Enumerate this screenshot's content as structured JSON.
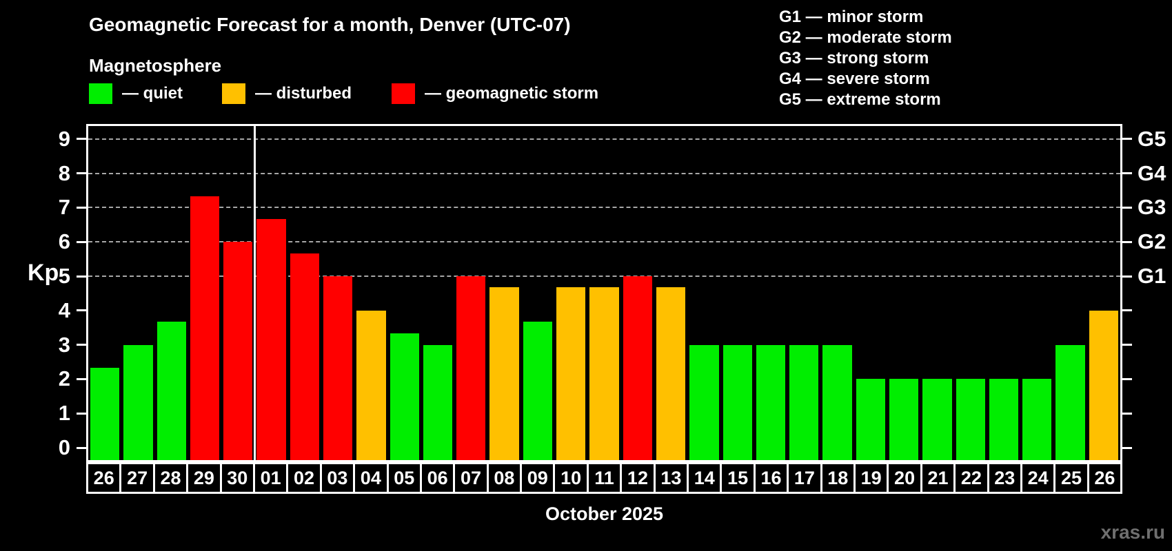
{
  "title": "Geomagnetic Forecast for a month, Denver (UTC-07)",
  "subtitle": "Magnetosphere",
  "legend": {
    "items": [
      {
        "key": "quiet",
        "label": "— quiet"
      },
      {
        "key": "disturbed",
        "label": "— disturbed"
      },
      {
        "key": "storm",
        "label": "— geomagnetic storm"
      }
    ]
  },
  "g_legend": {
    "lines": [
      "G1 — minor storm",
      "G2 — moderate storm",
      "G3 — strong storm",
      "G4 — severe storm",
      "G5 — extreme storm"
    ]
  },
  "axis": {
    "y_label": "Kp",
    "x_label": "October 2025"
  },
  "watermark": "xras.ru",
  "colors": {
    "quiet": "#00ee00",
    "disturbed": "#ffc000",
    "storm": "#ff0000",
    "axis": "#ffffff",
    "grid": "#a8a8a8",
    "watermark": "#6f6f6f"
  },
  "chart_data": {
    "type": "bar",
    "title": "Geomagnetic Forecast for a month, Denver (UTC-07)",
    "subtitle": "Magnetosphere",
    "ylabel": "Kp",
    "xlabel": "October 2025",
    "ylim": [
      0,
      9
    ],
    "yticks": [
      0,
      1,
      2,
      3,
      4,
      5,
      6,
      7,
      8,
      9
    ],
    "gridlines_at": [
      5,
      6,
      7,
      8,
      9
    ],
    "grid": "dashed horizontal at Kp 5-9 only",
    "right_axis_labels": {
      "5": "G1",
      "6": "G2",
      "7": "G3",
      "8": "G4",
      "9": "G5"
    },
    "legend_entries": [
      "quiet",
      "disturbed",
      "geomagnetic storm"
    ],
    "legend_position": "top-left above plot",
    "month_boundary_after_index": 4,
    "categories": [
      "26",
      "27",
      "28",
      "29",
      "30",
      "01",
      "02",
      "03",
      "04",
      "05",
      "06",
      "07",
      "08",
      "09",
      "10",
      "11",
      "12",
      "13",
      "14",
      "15",
      "16",
      "17",
      "18",
      "19",
      "20",
      "21",
      "22",
      "23",
      "24",
      "25",
      "26"
    ],
    "values": [
      2.33,
      3,
      3.67,
      7.33,
      6,
      6.67,
      5.67,
      5,
      4,
      3.33,
      3,
      5,
      4.67,
      3.67,
      4.67,
      4.67,
      5,
      4.67,
      3,
      3,
      3,
      3,
      3,
      2,
      2,
      2,
      2,
      2,
      2,
      3,
      4
    ],
    "statuses": [
      "quiet",
      "quiet",
      "quiet",
      "storm",
      "storm",
      "storm",
      "storm",
      "storm",
      "disturbed",
      "quiet",
      "quiet",
      "storm",
      "disturbed",
      "quiet",
      "disturbed",
      "disturbed",
      "storm",
      "disturbed",
      "quiet",
      "quiet",
      "quiet",
      "quiet",
      "quiet",
      "quiet",
      "quiet",
      "quiet",
      "quiet",
      "quiet",
      "quiet",
      "quiet",
      "disturbed"
    ]
  }
}
